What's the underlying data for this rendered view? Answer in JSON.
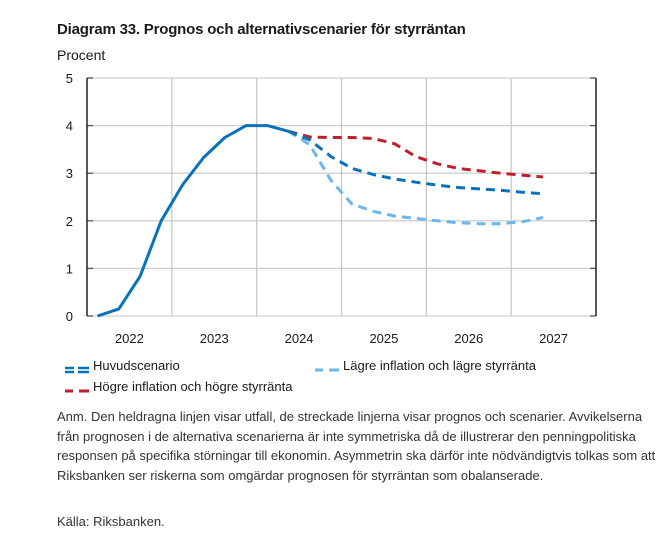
{
  "chart_data": {
    "type": "line",
    "title": "Diagram 33. Prognos och alternativscenarier för styrräntan",
    "ylabel": "Procent",
    "xlabel": "",
    "ylim": [
      0,
      5
    ],
    "yticks": [
      0,
      1,
      2,
      3,
      4,
      5
    ],
    "x_categories": [
      "2022",
      "2023",
      "2024",
      "2025",
      "2026",
      "2027"
    ],
    "grid": true,
    "legend_position": "bottom",
    "series": [
      {
        "name": "Huvudscenario (utfall)",
        "style": "solid",
        "color": "#0a72ba",
        "x_quarter_index": [
          0,
          1,
          2,
          3,
          4,
          5,
          6,
          7,
          8,
          9
        ],
        "values": [
          0.0,
          0.15,
          0.83,
          2.0,
          2.75,
          3.33,
          3.75,
          4.0,
          4.0,
          3.88
        ]
      },
      {
        "name": "Huvudscenario",
        "style": "dashed",
        "color": "#0a72ba",
        "x_quarter_index": [
          9,
          10,
          11,
          12,
          13,
          14,
          15,
          16,
          17,
          18,
          19,
          20,
          21
        ],
        "values": [
          3.88,
          3.7,
          3.35,
          3.1,
          2.97,
          2.88,
          2.81,
          2.75,
          2.7,
          2.67,
          2.64,
          2.6,
          2.57
        ]
      },
      {
        "name": "Lägre inflation och lägre styrränta",
        "style": "dashed",
        "color": "#6cb6ee",
        "x_quarter_index": [
          9,
          10,
          11,
          12,
          13,
          14,
          15,
          16,
          17,
          18,
          19,
          20,
          21
        ],
        "values": [
          3.88,
          3.6,
          2.85,
          2.35,
          2.2,
          2.1,
          2.05,
          2.0,
          1.96,
          1.94,
          1.94,
          1.98,
          2.07
        ]
      },
      {
        "name": "Högre inflation och högre styrränta",
        "style": "dashed",
        "color": "#be1e2d",
        "x_quarter_index": [
          9,
          10,
          11,
          12,
          13,
          14,
          15,
          16,
          17,
          18,
          19,
          20,
          21
        ],
        "values": [
          3.88,
          3.76,
          3.75,
          3.75,
          3.73,
          3.62,
          3.35,
          3.2,
          3.1,
          3.05,
          3.0,
          2.96,
          2.92
        ]
      }
    ],
    "legend": [
      {
        "label": "Huvudscenario",
        "color": "#0a72ba",
        "style": "double-dash"
      },
      {
        "label": "Lägre inflation och lägre styrränta",
        "color": "#6cb6ee",
        "style": "dash"
      },
      {
        "label": "Högre inflation och högre styrränta",
        "color": "#be1e2d",
        "style": "dash"
      }
    ]
  },
  "note": "Anm. Den heldragna linjen visar utfall, de streckade linjerna visar prognos och scenarier. Avvikelserna från prognosen i de alternativa scenarierna är inte symmetriska då de illustrerar den penningpolitiska responsen på specifika störningar till ekonomin. Asymmetrin ska därför inte nödvändigtvis tolkas som att Riksbanken ser riskerna som omgärdar prognosen för styrräntan som obalanserade.",
  "source": "Källa: Riksbanken."
}
